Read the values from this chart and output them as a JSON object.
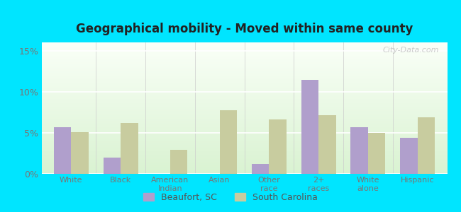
{
  "title": "Geographical mobility - Moved within same county",
  "categories": [
    "White",
    "Black",
    "American\nIndian",
    "Asian",
    "Other\nrace",
    "2+\nraces",
    "White\nalone",
    "Hispanic"
  ],
  "beaufort_values": [
    5.7,
    2.0,
    0.0,
    0.0,
    1.2,
    11.4,
    5.7,
    4.4
  ],
  "sc_values": [
    5.1,
    6.2,
    2.9,
    7.7,
    6.6,
    7.1,
    5.0,
    6.9
  ],
  "beaufort_color": "#b09fcc",
  "sc_color": "#c8cc9f",
  "background_outer": "#00e5ff",
  "ylim": [
    0,
    0.16
  ],
  "yticks": [
    0,
    0.05,
    0.1,
    0.15
  ],
  "ytick_labels": [
    "0%",
    "5%",
    "10%",
    "15%"
  ],
  "bar_width": 0.35,
  "legend_labels": [
    "Beaufort, SC",
    "South Carolina"
  ],
  "watermark": "City-Data.com"
}
